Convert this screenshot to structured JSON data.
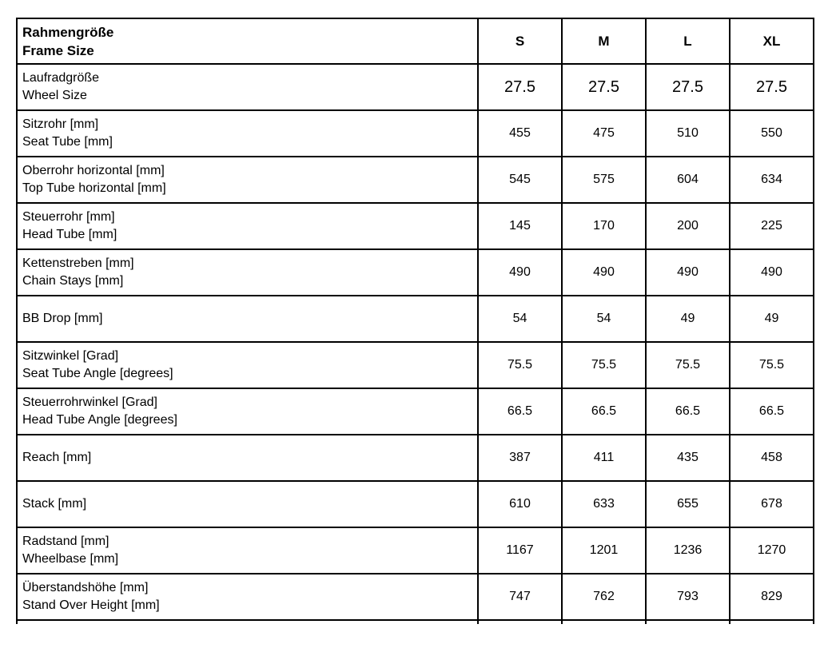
{
  "table": {
    "header": {
      "label_de": "Rahmengröße",
      "label_en": "Frame Size",
      "sizes": [
        "S",
        "M",
        "L",
        "XL"
      ]
    },
    "rows": [
      {
        "label_de": "Laufradgröße",
        "label_en": "Wheel Size",
        "values": [
          "27.5",
          "27.5",
          "27.5",
          "27.5"
        ],
        "emphasis": true
      },
      {
        "label_de": "Sitzrohr [mm]",
        "label_en": "Seat Tube [mm]",
        "values": [
          "455",
          "475",
          "510",
          "550"
        ]
      },
      {
        "label_de": "Oberrohr horizontal [mm]",
        "label_en": "Top Tube horizontal [mm]",
        "values": [
          "545",
          "575",
          "604",
          "634"
        ]
      },
      {
        "label_de": "Steuerrohr [mm]",
        "label_en": "Head Tube [mm]",
        "values": [
          "145",
          "170",
          "200",
          "225"
        ]
      },
      {
        "label_de": "Kettenstreben [mm]",
        "label_en": "Chain Stays [mm]",
        "values": [
          "490",
          "490",
          "490",
          "490"
        ]
      },
      {
        "label_de": "BB Drop [mm]",
        "label_en": "",
        "values": [
          "54",
          "54",
          "49",
          "49"
        ]
      },
      {
        "label_de": "Sitzwinkel [Grad]",
        "label_en": "Seat Tube Angle [degrees]",
        "values": [
          "75.5",
          "75.5",
          "75.5",
          "75.5"
        ]
      },
      {
        "label_de": "Steuerrohrwinkel [Grad]",
        "label_en": "Head Tube Angle [degrees]",
        "values": [
          "66.5",
          "66.5",
          "66.5",
          "66.5"
        ]
      },
      {
        "label_de": "Reach [mm]",
        "label_en": "",
        "values": [
          "387",
          "411",
          "435",
          "458"
        ]
      },
      {
        "label_de": "Stack [mm]",
        "label_en": "",
        "values": [
          "610",
          "633",
          "655",
          "678"
        ]
      },
      {
        "label_de": "Radstand [mm]",
        "label_en": "Wheelbase [mm]",
        "values": [
          "1167",
          "1201",
          "1236",
          "1270"
        ]
      },
      {
        "label_de": "Überstandshöhe [mm]",
        "label_en": "Stand Over Height [mm]",
        "values": [
          "747",
          "762",
          "793",
          "829"
        ]
      }
    ]
  },
  "colors": {
    "background": "#ffffff",
    "border": "#000000",
    "text": "#000000"
  }
}
